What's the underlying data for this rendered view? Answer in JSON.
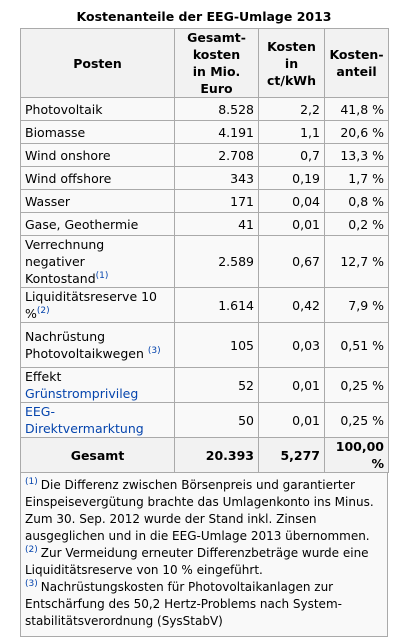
{
  "caption": "Kostenanteile der EEG-Umlage 2013",
  "headers": {
    "posten": "Posten",
    "gesamt": [
      "Gesamt-",
      "kosten",
      "in Mio. Euro"
    ],
    "kosten": [
      "Kosten",
      "in ct/kWh"
    ],
    "anteil": [
      "Kosten-",
      "anteil"
    ]
  },
  "rows": [
    {
      "label": "Photovoltaik",
      "gesamt": "8.528",
      "kosten": "2,2",
      "anteil": "41,8 %"
    },
    {
      "label": "Biomasse",
      "gesamt": "4.191",
      "kosten": "1,1",
      "anteil": "20,6 %"
    },
    {
      "label": "Wind onshore",
      "gesamt": "2.708",
      "kosten": "0,7",
      "anteil": "13,3 %"
    },
    {
      "label": "Wind offshore",
      "gesamt": "343",
      "kosten": "0,19",
      "anteil": "1,7 %"
    },
    {
      "label": "Wasser",
      "gesamt": "171",
      "kosten": "0,04",
      "anteil": "0,8 %"
    },
    {
      "label": "Gase, Geothermie",
      "gesamt": "41",
      "kosten": "0,01",
      "anteil": "0,2 %"
    },
    {
      "label1": "Verrechnung",
      "label2": "negativer Kontostand",
      "sup": "(1)",
      "gesamt": "2.589",
      "kosten": "0,67",
      "anteil": "12,7 %"
    },
    {
      "label": "Liquiditätsreserve 10 %",
      "sup": "(2)",
      "gesamt": "1.614",
      "kosten": "0,42",
      "anteil": "7,9 %"
    },
    {
      "label1": "Nachrüstung",
      "label2": "Photovoltaikwegen",
      "sup": "(3)",
      "gesamt": "105",
      "kosten": "0,03",
      "anteil": "0,51 %"
    },
    {
      "label_prefix": "Effekt ",
      "label_link": "Grünstromprivileg",
      "gesamt": "52",
      "kosten": "0,01",
      "anteil": "0,25 %"
    },
    {
      "label_link": "EEG-Direktvermarktung",
      "gesamt": "50",
      "kosten": "0,01",
      "anteil": "0,25 %"
    }
  ],
  "total": {
    "label": "Gesamt",
    "gesamt": "20.393",
    "kosten": "5,277",
    "anteil": "100,00 %"
  },
  "notes": [
    {
      "marker": "(1)",
      "text": "Die Differenz zwischen Börsenpreis und garantierter Einspeisevergütung brachte das Umlagenkonto ins Minus. Zum 30. Sep. 2012 wurde der Stand inkl. Zinsen ausgeglichen und in die EEG-Umlage 2013 übernommen."
    },
    {
      "marker": "(2)",
      "text": "Zur Vermeidung erneuter Differenzbeträge wurde eine Liquiditätsreserve von 10 % eingeführt."
    },
    {
      "marker": "(3)",
      "text": "Nachrüstungskosten für Photovoltaikanlagen zur Entschärfung des 50,2 Hertz-Problems nach System-stabilitätsverordnung (SysStabV)"
    }
  ],
  "colors": {
    "link": "#0645ad",
    "header_bg": "#f2f2f2",
    "cell_bg": "#f9f9f9",
    "border": "#aaaaaa"
  }
}
